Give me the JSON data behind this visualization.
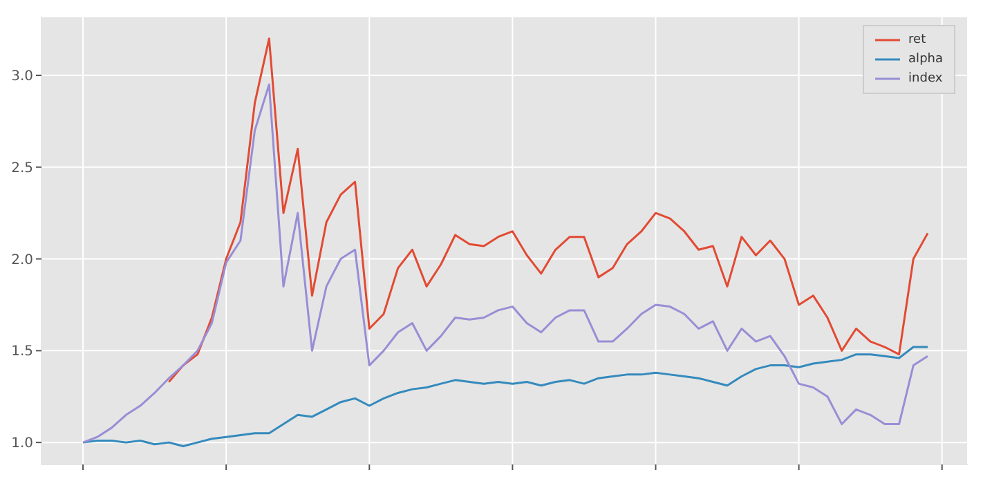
{
  "chart_data": {
    "type": "line",
    "categories": [
      null,
      null,
      null,
      null,
      null,
      null,
      null,
      null,
      null,
      null,
      null,
      null,
      null,
      null,
      null,
      null,
      null,
      null,
      null,
      null,
      null,
      null,
      null,
      null,
      null,
      null,
      null,
      null,
      null,
      null,
      null,
      null,
      null,
      null,
      null,
      null,
      null,
      null,
      null,
      null,
      null,
      null,
      null,
      null,
      null,
      null,
      null,
      null,
      null,
      null,
      null,
      null,
      null,
      null,
      null,
      null,
      null,
      null,
      null,
      null
    ],
    "series": [
      {
        "name": "ret",
        "color": "#e24a33",
        "values": [
          null,
          null,
          null,
          null,
          null,
          null,
          1.33,
          1.42,
          1.48,
          1.68,
          2.0,
          2.2,
          2.85,
          3.2,
          2.25,
          2.6,
          1.8,
          2.2,
          2.35,
          2.42,
          1.62,
          1.7,
          1.95,
          2.05,
          1.85,
          1.97,
          2.13,
          2.08,
          2.07,
          2.12,
          2.15,
          2.02,
          1.92,
          2.05,
          2.12,
          2.12,
          1.9,
          1.95,
          2.08,
          2.15,
          2.25,
          2.22,
          2.15,
          2.05,
          2.07,
          1.85,
          2.12,
          2.02,
          2.1,
          2.0,
          1.75,
          1.8,
          1.68,
          1.5,
          1.62,
          1.55,
          1.52,
          1.48,
          2.0,
          2.14
        ]
      },
      {
        "name": "alpha",
        "color": "#348abd",
        "values": [
          1.0,
          1.01,
          1.01,
          1.0,
          1.01,
          0.99,
          1.0,
          0.98,
          1.0,
          1.02,
          1.03,
          1.04,
          1.05,
          1.05,
          1.1,
          1.15,
          1.14,
          1.18,
          1.22,
          1.24,
          1.2,
          1.24,
          1.27,
          1.29,
          1.3,
          1.32,
          1.34,
          1.33,
          1.32,
          1.33,
          1.32,
          1.33,
          1.31,
          1.33,
          1.34,
          1.32,
          1.35,
          1.36,
          1.37,
          1.37,
          1.38,
          1.37,
          1.36,
          1.35,
          1.33,
          1.31,
          1.36,
          1.4,
          1.42,
          1.42,
          1.41,
          1.43,
          1.44,
          1.45,
          1.48,
          1.48,
          1.47,
          1.46,
          1.52,
          1.52
        ]
      },
      {
        "name": "index",
        "color": "#988ed5",
        "values": [
          1.0,
          1.03,
          1.08,
          1.15,
          1.2,
          1.27,
          1.35,
          1.42,
          1.5,
          1.65,
          1.98,
          2.1,
          2.7,
          2.95,
          1.85,
          2.25,
          1.5,
          1.85,
          2.0,
          2.05,
          1.42,
          1.5,
          1.6,
          1.65,
          1.5,
          1.58,
          1.68,
          1.67,
          1.68,
          1.72,
          1.74,
          1.65,
          1.6,
          1.68,
          1.72,
          1.72,
          1.55,
          1.55,
          1.62,
          1.7,
          1.75,
          1.74,
          1.7,
          1.62,
          1.66,
          1.5,
          1.62,
          1.55,
          1.58,
          1.47,
          1.32,
          1.3,
          1.25,
          1.1,
          1.18,
          1.15,
          1.1,
          1.1,
          1.42,
          1.47
        ]
      }
    ],
    "ylim": [
      0.88,
      3.32
    ],
    "yticks": [
      {
        "value": 1.0,
        "label": "1.0"
      },
      {
        "value": 1.5,
        "label": "1.5"
      },
      {
        "value": 2.0,
        "label": "2.0"
      },
      {
        "value": 2.5,
        "label": "2.5"
      },
      {
        "value": 3.0,
        "label": "3.0"
      }
    ],
    "grid": true,
    "legend": "top right",
    "marker": "none",
    "line_style": "solid"
  }
}
